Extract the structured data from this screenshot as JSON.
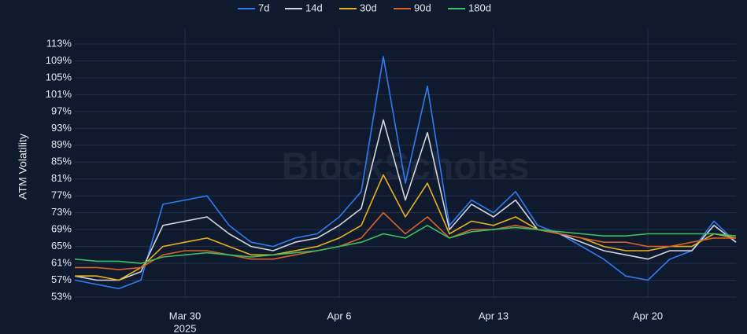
{
  "chart_data": {
    "type": "line",
    "y_label": "ATM Volatility",
    "watermark": "BlockScholes",
    "x": [
      "2025-03-25",
      "2025-03-26",
      "2025-03-27",
      "2025-03-28",
      "2025-03-29",
      "2025-03-30",
      "2025-03-31",
      "2025-04-01",
      "2025-04-02",
      "2025-04-03",
      "2025-04-04",
      "2025-04-05",
      "2025-04-06",
      "2025-04-07",
      "2025-04-08",
      "2025-04-09",
      "2025-04-10",
      "2025-04-11",
      "2025-04-12",
      "2025-04-13",
      "2025-04-14",
      "2025-04-15",
      "2025-04-16",
      "2025-04-17",
      "2025-04-18",
      "2025-04-19",
      "2025-04-20",
      "2025-04-21",
      "2025-04-22",
      "2025-04-23",
      "2025-04-24"
    ],
    "series": [
      {
        "name": "7d",
        "color": "#2f7bf0",
        "values": [
          57,
          56,
          55,
          57,
          75,
          76,
          77,
          70,
          66,
          65,
          67,
          68,
          72,
          78,
          110,
          80,
          103,
          70,
          76,
          73,
          78,
          70,
          68,
          65,
          62,
          58,
          57,
          62,
          64,
          71,
          66
        ]
      },
      {
        "name": "14d",
        "color": "#d3d6de",
        "values": [
          58,
          57,
          57,
          59,
          70,
          71,
          72,
          68,
          65,
          64,
          66,
          67,
          70,
          74,
          95,
          76,
          92,
          69,
          75,
          72,
          76,
          69,
          68,
          66,
          64,
          63,
          62,
          64,
          64,
          70,
          66
        ]
      },
      {
        "name": "30d",
        "color": "#e8b020",
        "values": [
          58,
          58,
          57,
          60,
          65,
          66,
          67,
          65,
          63,
          63,
          64,
          65,
          67,
          70,
          82,
          72,
          80,
          68,
          71,
          70,
          72,
          69,
          68,
          67,
          65,
          64,
          64,
          65,
          65,
          68,
          67
        ]
      },
      {
        "name": "90d",
        "color": "#d8622a",
        "values": [
          60,
          60,
          59.5,
          60,
          63,
          64,
          64,
          63,
          62,
          62,
          63,
          64,
          65,
          67,
          73,
          68,
          72,
          67,
          69,
          69,
          70,
          69,
          68,
          67,
          66,
          66,
          65,
          65,
          66,
          67,
          67
        ]
      },
      {
        "name": "180d",
        "color": "#3cc060",
        "values": [
          62,
          61.5,
          61.5,
          61,
          62.5,
          63,
          63.5,
          63,
          62.5,
          63,
          63.5,
          64,
          65,
          66,
          68,
          67,
          70,
          67,
          68.5,
          69,
          69.5,
          69,
          68.5,
          68,
          67.5,
          67.5,
          68,
          68,
          68,
          68,
          67.5
        ]
      }
    ],
    "xlim": [
      "2025-03-25",
      "2025-04-24"
    ],
    "xticks": [
      {
        "value": "2025-03-30",
        "label": "Mar 30"
      },
      {
        "value": "2025-04-06",
        "label": "Apr 6"
      },
      {
        "value": "2025-04-13",
        "label": "Apr 13"
      },
      {
        "value": "2025-04-20",
        "label": "Apr 20"
      }
    ],
    "x_year_label": "2025",
    "ylim": [
      53,
      113
    ],
    "yticks": [
      {
        "value": 53,
        "label": "53%"
      },
      {
        "value": 57,
        "label": "57%"
      },
      {
        "value": 61,
        "label": "61%"
      },
      {
        "value": 65,
        "label": "65%"
      },
      {
        "value": 69,
        "label": "69%"
      },
      {
        "value": 73,
        "label": "73%"
      },
      {
        "value": 77,
        "label": "77%"
      },
      {
        "value": 81,
        "label": "81%"
      },
      {
        "value": 85,
        "label": "85%"
      },
      {
        "value": 89,
        "label": "89%"
      },
      {
        "value": 93,
        "label": "93%"
      },
      {
        "value": 97,
        "label": "97%"
      },
      {
        "value": 101,
        "label": "101%"
      },
      {
        "value": 105,
        "label": "105%"
      },
      {
        "value": 109,
        "label": "109%"
      },
      {
        "value": 113,
        "label": "113%"
      }
    ],
    "grid": true,
    "legend": "top"
  }
}
